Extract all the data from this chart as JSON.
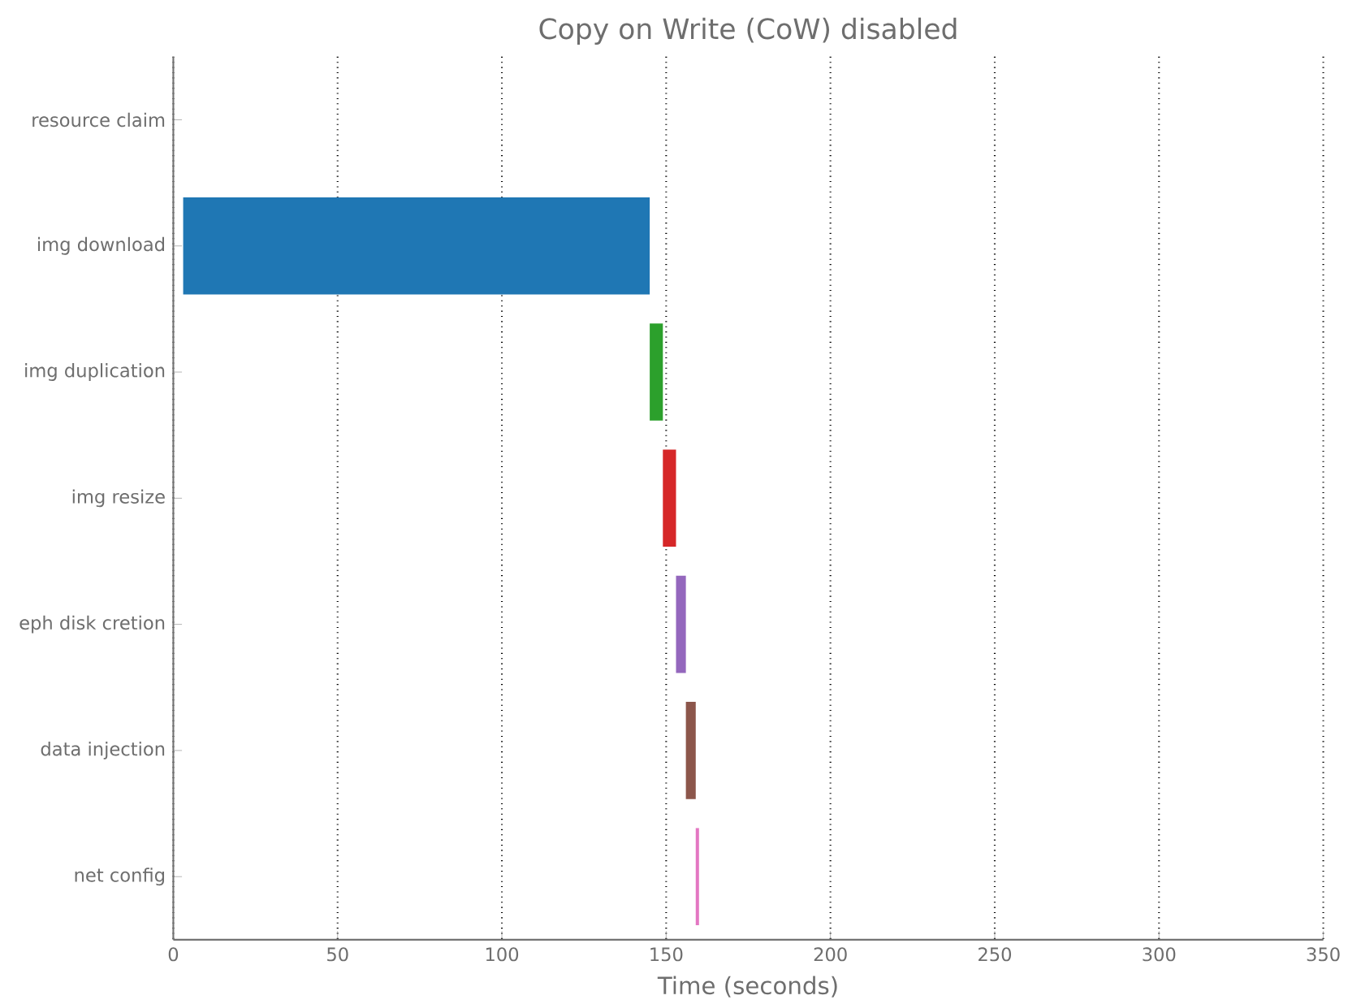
{
  "chart_data": {
    "type": "bar",
    "orientation": "horizontal",
    "title": "Copy on Write (CoW) disabled",
    "xlabel": "Time (seconds)",
    "categories": [
      "resource claim",
      "img download",
      "img duplication",
      "img resize",
      "eph disk cretion",
      "data injection",
      "net config"
    ],
    "base": [
      null,
      3,
      145,
      149,
      153,
      156,
      159
    ],
    "values": [
      null,
      142,
      4,
      4,
      3,
      3,
      1
    ],
    "colors": [
      "#ff7f0e",
      "#1f77b4",
      "#2ca02c",
      "#d62728",
      "#9467bd",
      "#8c564b",
      "#e377c2"
    ],
    "xlim": [
      0,
      350
    ],
    "xticks": [
      0,
      50,
      100,
      150,
      200,
      250,
      300,
      350
    ],
    "grid": "x"
  }
}
